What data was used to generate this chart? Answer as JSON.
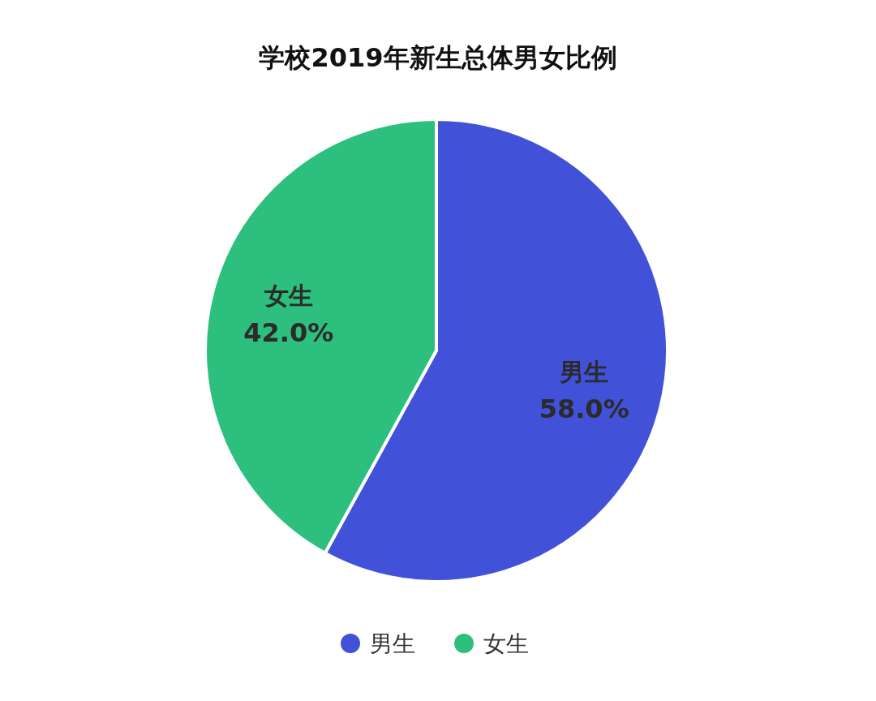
{
  "chart_data": {
    "type": "pie",
    "title": "学校2019年新生总体男女比例",
    "categories": [
      "男生",
      "女生"
    ],
    "values": [
      58,
      42
    ],
    "colors": [
      "#4152d9",
      "#2dbf7e"
    ],
    "value_labels": [
      "58.0%",
      "42.0%"
    ],
    "legend": "bottom"
  }
}
